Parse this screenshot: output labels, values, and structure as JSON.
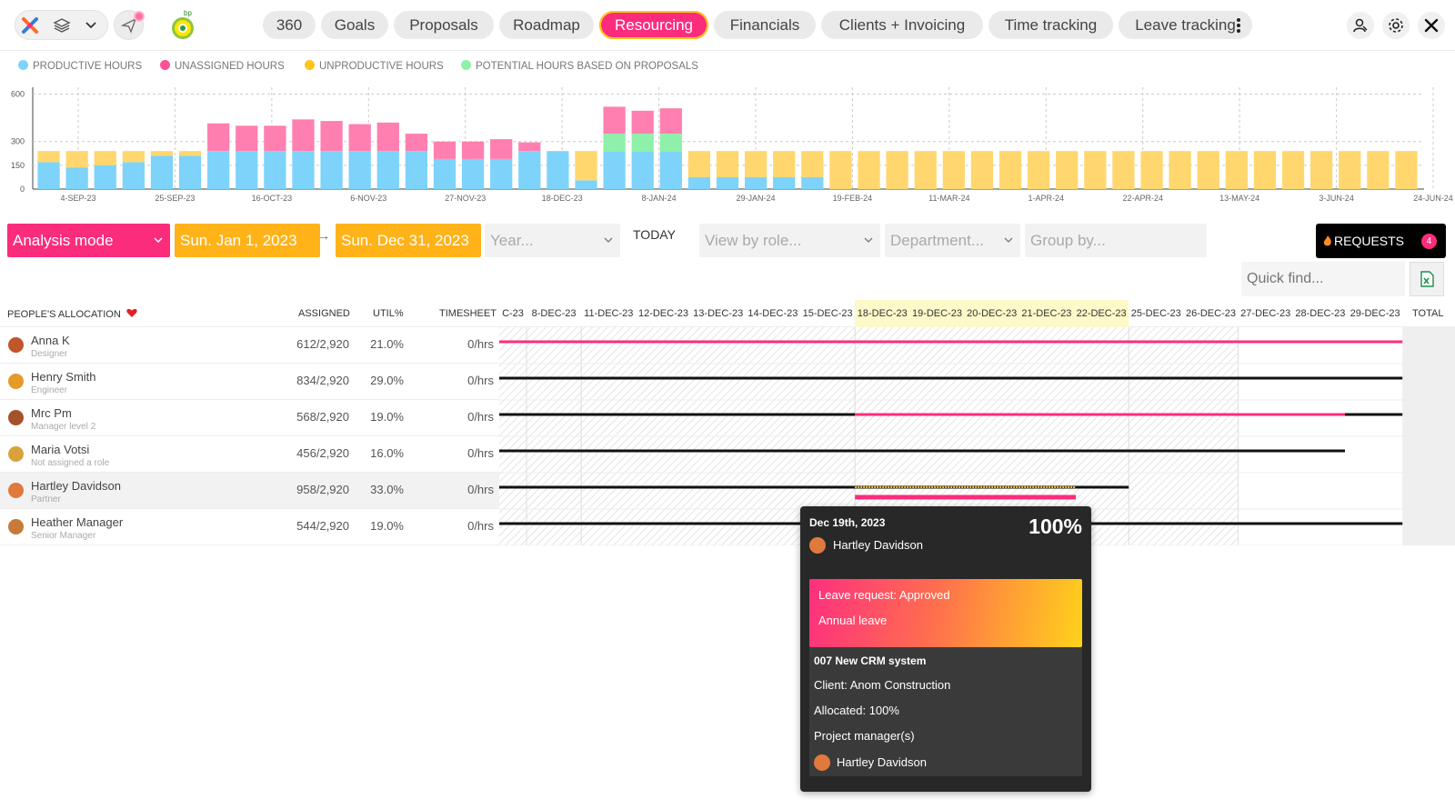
{
  "nav": {
    "tabs": [
      {
        "label": "360",
        "active": false
      },
      {
        "label": "Goals",
        "active": false
      },
      {
        "label": "Proposals",
        "active": false
      },
      {
        "label": "Roadmap",
        "active": false
      },
      {
        "label": "Resourcing",
        "active": true
      },
      {
        "label": "Financials",
        "active": false
      },
      {
        "label": "Clients + Invoicing",
        "active": false
      },
      {
        "label": "Time tracking",
        "active": false
      },
      {
        "label": "Leave tracking",
        "active": false
      }
    ],
    "brand_tag": "bp"
  },
  "legend": [
    {
      "label": "PRODUCTIVE HOURS",
      "color": "#7dd3fa"
    },
    {
      "label": "UNASSIGNED HOURS",
      "color": "#ff69a4"
    },
    {
      "label": "UNPRODUCTIVE HOURS",
      "color": "#ffc51f"
    },
    {
      "label": "POTENTIAL HOURS BASED ON PROPOSALS",
      "color": "#8ff0a9"
    }
  ],
  "chart_data": {
    "type": "bar",
    "stacked": true,
    "y_ticks": [
      0,
      150,
      300,
      600
    ],
    "ylim": [
      0,
      620
    ],
    "x_tick_labels": [
      "4-SEP-23",
      "25-SEP-23",
      "16-OCT-23",
      "6-NOV-23",
      "27-NOV-23",
      "18-DEC-23",
      "8-JAN-24",
      "29-JAN-24",
      "19-FEB-24",
      "11-MAR-24",
      "1-APR-24",
      "22-APR-24",
      "13-MAY-24",
      "3-JUN-24",
      "24-JUN-24"
    ],
    "series": [
      {
        "name": "PRODUCTIVE HOURS",
        "color": "#7dd3fa",
        "values": [
          170,
          135,
          150,
          170,
          210,
          210,
          240,
          240,
          240,
          240,
          240,
          240,
          240,
          240,
          190,
          190,
          190,
          240,
          240,
          55,
          240,
          240,
          240,
          75,
          75,
          75,
          75,
          75,
          0,
          0,
          0,
          0,
          0,
          0,
          0,
          0,
          0,
          0,
          0,
          0,
          0,
          0,
          0,
          0,
          0,
          0,
          0,
          0,
          0
        ]
      },
      {
        "name": "UNPRODUCTIVE HOURS",
        "color": "#ffd76e",
        "values": [
          70,
          105,
          90,
          70,
          30,
          30,
          0,
          0,
          0,
          0,
          0,
          0,
          0,
          0,
          0,
          0,
          0,
          0,
          0,
          185,
          0,
          0,
          0,
          165,
          165,
          165,
          165,
          165,
          240,
          240,
          240,
          240,
          240,
          240,
          240,
          240,
          240,
          240,
          240,
          240,
          240,
          240,
          240,
          240,
          240,
          240,
          240,
          240,
          240
        ]
      },
      {
        "name": "POTENTIAL HOURS BASED ON PROPOSALS",
        "color": "#8ff0a9",
        "values": [
          0,
          0,
          0,
          0,
          0,
          0,
          0,
          0,
          0,
          0,
          0,
          0,
          0,
          0,
          0,
          0,
          0,
          0,
          0,
          0,
          110,
          110,
          110,
          0,
          0,
          0,
          0,
          0,
          0,
          0,
          0,
          0,
          0,
          0,
          0,
          0,
          0,
          0,
          0,
          0,
          0,
          0,
          0,
          0,
          0,
          0,
          0,
          0,
          0
        ]
      },
      {
        "name": "UNASSIGNED HOURS",
        "color": "#ff7fb0",
        "values": [
          0,
          0,
          0,
          0,
          0,
          0,
          175,
          160,
          160,
          200,
          190,
          170,
          180,
          110,
          110,
          110,
          125,
          55,
          0,
          0,
          170,
          145,
          160,
          0,
          0,
          0,
          0,
          0,
          0,
          0,
          0,
          0,
          0,
          0,
          0,
          0,
          0,
          0,
          0,
          0,
          0,
          0,
          0,
          0,
          0,
          0,
          0,
          0,
          0
        ]
      }
    ]
  },
  "filters": {
    "mode": "Analysis mode",
    "start_date": "Sun. Jan 1, 2023",
    "end_date": "Sun. Dec 31, 2023",
    "arrow": "→",
    "year_placeholder": "Year...",
    "today": "TODAY",
    "role_placeholder": "View by role...",
    "department_placeholder": "Department...",
    "group_placeholder": "Group by...",
    "requests_label": "REQUESTS",
    "requests_count": "4",
    "quick_find_placeholder": "Quick find..."
  },
  "table": {
    "headers": {
      "people": "PEOPLE'S ALLOCATION",
      "assigned": "ASSIGNED",
      "util": "UTIL%",
      "timesheet": "TIMESHEET",
      "total": "TOTAL"
    },
    "dates": [
      {
        "label": "C-23",
        "hl": false
      },
      {
        "label": "8-DEC-23",
        "hl": false
      },
      {
        "label": "11-DEC-23",
        "hl": false
      },
      {
        "label": "12-DEC-23",
        "hl": false
      },
      {
        "label": "13-DEC-23",
        "hl": false
      },
      {
        "label": "14-DEC-23",
        "hl": false
      },
      {
        "label": "15-DEC-23",
        "hl": false
      },
      {
        "label": "18-DEC-23",
        "hl": true
      },
      {
        "label": "19-DEC-23",
        "hl": true
      },
      {
        "label": "20-DEC-23",
        "hl": true
      },
      {
        "label": "21-DEC-23",
        "hl": true
      },
      {
        "label": "22-DEC-23",
        "hl": true
      },
      {
        "label": "25-DEC-23",
        "hl": false
      },
      {
        "label": "26-DEC-23",
        "hl": false
      },
      {
        "label": "27-DEC-23",
        "hl": false
      },
      {
        "label": "28-DEC-23",
        "hl": false
      },
      {
        "label": "29-DEC-23",
        "hl": false
      }
    ],
    "rows": [
      {
        "name": "Anna K",
        "role": "Designer",
        "assigned": "612/2,920",
        "util": "21.0%",
        "timesheet": "0/hrs",
        "avatar": "#c0562a"
      },
      {
        "name": "Henry Smith",
        "role": "Engineer",
        "assigned": "834/2,920",
        "util": "29.0%",
        "timesheet": "0/hrs",
        "avatar": "#e59a2a"
      },
      {
        "name": "Mrc Pm",
        "role": "Manager level 2",
        "assigned": "568/2,920",
        "util": "19.0%",
        "timesheet": "0/hrs",
        "avatar": "#a5522c"
      },
      {
        "name": "Maria Votsi",
        "role": "Not assigned a role",
        "assigned": "456/2,920",
        "util": "16.0%",
        "timesheet": "0/hrs",
        "avatar": "#d8a23a"
      },
      {
        "name": "Hartley Davidson",
        "role": "Partner",
        "assigned": "958/2,920",
        "util": "33.0%",
        "timesheet": "0/hrs",
        "avatar": "#e0793c"
      },
      {
        "name": "Heather Manager",
        "role": "Senior Manager",
        "assigned": "544/2,920",
        "util": "19.0%",
        "timesheet": "0/hrs",
        "avatar": "#c77a3a"
      }
    ]
  },
  "tooltip": {
    "date": "Dec 19th, 2023",
    "percent": "100%",
    "person": "Hartley Davidson",
    "leave_status": "Leave request: Approved",
    "leave_type": "Annual leave",
    "project": "007 New CRM system",
    "client": "Client: Anom Construction",
    "allocated": "Allocated: 100%",
    "pm_label": "Project manager(s)",
    "pm_name": "Hartley Davidson"
  },
  "colors": {
    "pink": "#fc2c7c",
    "orange": "#ffb319",
    "allocation_line": "#111111",
    "leave_line": "#fc2c7c"
  }
}
